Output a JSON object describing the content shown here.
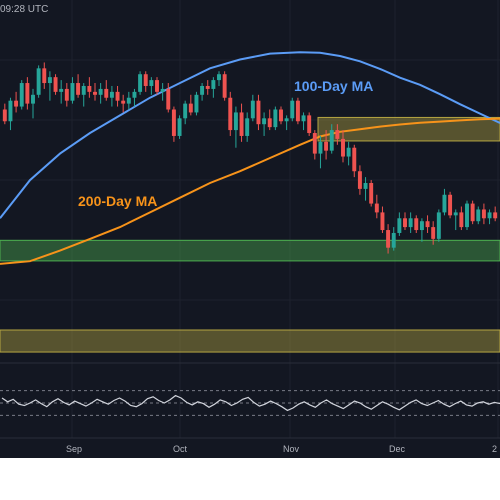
{
  "header": {
    "timestamp": "09:28 UTC"
  },
  "colors": {
    "background": "#131722",
    "bullish": "#26a69a",
    "bearish": "#ef5350",
    "ma100": "#5b9cf6",
    "ma200": "#f7931a",
    "rsi_line": "#d1d4dc",
    "supply_zone": "#b5a642",
    "demand_zone": "#4caf50"
  },
  "chart_data": [
    {
      "type": "candlestick",
      "title": "",
      "x_ticks": [
        "Sep",
        "Oct",
        "Nov",
        "Dec",
        "2"
      ],
      "price_range": [
        0,
        100
      ],
      "annotations": [
        "100-Day MA",
        "200-Day MA"
      ],
      "moving_averages": [
        {
          "name": "100-Day MA",
          "color": "#5b9cf6",
          "x": [
            0,
            30,
            60,
            90,
            120,
            150,
            180,
            210,
            240,
            270,
            300,
            320,
            340,
            360,
            380,
            400,
            420,
            440,
            460,
            480,
            500
          ],
          "y": [
            38,
            51,
            60,
            67,
            73,
            79,
            84,
            89,
            92,
            94,
            94.5,
            94.3,
            93.2,
            91.4,
            88.8,
            85.8,
            83.4,
            80.2,
            76.8,
            73.6,
            70.4
          ]
        },
        {
          "name": "200-Day MA",
          "color": "#f7931a",
          "x": [
            0,
            30,
            60,
            90,
            120,
            150,
            180,
            210,
            240,
            270,
            300,
            320,
            340,
            360,
            380,
            400,
            420,
            440,
            460,
            480,
            500
          ],
          "y": [
            22.5,
            23.4,
            27,
            31,
            35,
            40,
            45,
            50,
            54,
            58.5,
            63,
            65.8,
            67.4,
            68.3,
            69.2,
            69.9,
            70.5,
            70.9,
            71.3,
            71.7,
            71.9
          ]
        }
      ],
      "zones": [
        {
          "type": "resistance",
          "from": 64.3,
          "to": 72.3,
          "x_start": 318
        },
        {
          "type": "support",
          "from": 23.5,
          "to": 30.5
        },
        {
          "type": "support",
          "from": -7.5,
          "to": 0
        }
      ],
      "candles": [
        {
          "o": 75,
          "h": 77,
          "l": 70,
          "c": 71
        },
        {
          "o": 71,
          "h": 79,
          "l": 68,
          "c": 78
        },
        {
          "o": 78,
          "h": 81,
          "l": 74,
          "c": 76
        },
        {
          "o": 76,
          "h": 85,
          "l": 75,
          "c": 84
        },
        {
          "o": 84,
          "h": 86,
          "l": 75,
          "c": 77
        },
        {
          "o": 77,
          "h": 82,
          "l": 72,
          "c": 80
        },
        {
          "o": 80,
          "h": 90,
          "l": 79,
          "c": 89
        },
        {
          "o": 89,
          "h": 91,
          "l": 82,
          "c": 84
        },
        {
          "o": 84,
          "h": 88,
          "l": 78,
          "c": 86
        },
        {
          "o": 86,
          "h": 87,
          "l": 80,
          "c": 81
        },
        {
          "o": 81,
          "h": 85,
          "l": 77,
          "c": 82
        },
        {
          "o": 82,
          "h": 84,
          "l": 76,
          "c": 78
        },
        {
          "o": 78,
          "h": 86,
          "l": 77,
          "c": 84
        },
        {
          "o": 84,
          "h": 87,
          "l": 79,
          "c": 80
        },
        {
          "o": 80,
          "h": 84,
          "l": 76,
          "c": 83
        },
        {
          "o": 83,
          "h": 86,
          "l": 79,
          "c": 81
        },
        {
          "o": 81,
          "h": 84,
          "l": 78,
          "c": 80
        },
        {
          "o": 80,
          "h": 84,
          "l": 77,
          "c": 82
        },
        {
          "o": 82,
          "h": 85,
          "l": 78,
          "c": 79
        },
        {
          "o": 79,
          "h": 83,
          "l": 76,
          "c": 81
        },
        {
          "o": 81,
          "h": 83,
          "l": 76,
          "c": 78
        },
        {
          "o": 78,
          "h": 80,
          "l": 74,
          "c": 77
        },
        {
          "o": 77,
          "h": 81,
          "l": 75,
          "c": 79
        },
        {
          "o": 79,
          "h": 82,
          "l": 76,
          "c": 81
        },
        {
          "o": 81,
          "h": 88,
          "l": 80,
          "c": 87
        },
        {
          "o": 87,
          "h": 88,
          "l": 81,
          "c": 83
        },
        {
          "o": 83,
          "h": 86,
          "l": 80,
          "c": 85
        },
        {
          "o": 85,
          "h": 86,
          "l": 80,
          "c": 81
        },
        {
          "o": 81,
          "h": 84,
          "l": 78,
          "c": 82
        },
        {
          "o": 82,
          "h": 84,
          "l": 74,
          "c": 75
        },
        {
          "o": 75,
          "h": 76,
          "l": 64,
          "c": 66
        },
        {
          "o": 66,
          "h": 73,
          "l": 65,
          "c": 72
        },
        {
          "o": 72,
          "h": 78,
          "l": 70,
          "c": 77
        },
        {
          "o": 77,
          "h": 80,
          "l": 73,
          "c": 74
        },
        {
          "o": 74,
          "h": 81,
          "l": 73,
          "c": 80
        },
        {
          "o": 80,
          "h": 84,
          "l": 78,
          "c": 83
        },
        {
          "o": 83,
          "h": 85,
          "l": 80,
          "c": 82
        },
        {
          "o": 82,
          "h": 86,
          "l": 79,
          "c": 85
        },
        {
          "o": 85,
          "h": 88,
          "l": 83,
          "c": 87
        },
        {
          "o": 87,
          "h": 88,
          "l": 78,
          "c": 79
        },
        {
          "o": 79,
          "h": 81,
          "l": 66,
          "c": 68
        },
        {
          "o": 68,
          "h": 76,
          "l": 62,
          "c": 74
        },
        {
          "o": 74,
          "h": 77,
          "l": 64,
          "c": 66
        },
        {
          "o": 66,
          "h": 74,
          "l": 64,
          "c": 72
        },
        {
          "o": 72,
          "h": 80,
          "l": 71,
          "c": 78
        },
        {
          "o": 78,
          "h": 80,
          "l": 68,
          "c": 70
        },
        {
          "o": 70,
          "h": 74,
          "l": 66,
          "c": 72
        },
        {
          "o": 72,
          "h": 75,
          "l": 68,
          "c": 69
        },
        {
          "o": 69,
          "h": 76,
          "l": 68,
          "c": 75
        },
        {
          "o": 75,
          "h": 76,
          "l": 70,
          "c": 71
        },
        {
          "o": 71,
          "h": 73,
          "l": 68,
          "c": 72
        },
        {
          "o": 72,
          "h": 79,
          "l": 71,
          "c": 78
        },
        {
          "o": 78,
          "h": 79,
          "l": 70,
          "c": 71
        },
        {
          "o": 71,
          "h": 74,
          "l": 68,
          "c": 73
        },
        {
          "o": 73,
          "h": 74,
          "l": 66,
          "c": 67
        },
        {
          "o": 67,
          "h": 68,
          "l": 58,
          "c": 60
        },
        {
          "o": 60,
          "h": 66,
          "l": 55,
          "c": 64
        },
        {
          "o": 64,
          "h": 68,
          "l": 58,
          "c": 61
        },
        {
          "o": 61,
          "h": 70,
          "l": 60,
          "c": 68
        },
        {
          "o": 68,
          "h": 70,
          "l": 63,
          "c": 65
        },
        {
          "o": 65,
          "h": 68,
          "l": 57,
          "c": 59
        },
        {
          "o": 59,
          "h": 64,
          "l": 56,
          "c": 62
        },
        {
          "o": 62,
          "h": 63,
          "l": 52,
          "c": 54
        },
        {
          "o": 54,
          "h": 56,
          "l": 46,
          "c": 48
        },
        {
          "o": 48,
          "h": 52,
          "l": 44,
          "c": 50
        },
        {
          "o": 50,
          "h": 51,
          "l": 42,
          "c": 43
        },
        {
          "o": 43,
          "h": 46,
          "l": 38,
          "c": 40
        },
        {
          "o": 40,
          "h": 42,
          "l": 33,
          "c": 34
        },
        {
          "o": 34,
          "h": 36,
          "l": 26,
          "c": 28
        },
        {
          "o": 28,
          "h": 35,
          "l": 27,
          "c": 33
        },
        {
          "o": 33,
          "h": 40,
          "l": 32,
          "c": 38
        },
        {
          "o": 38,
          "h": 40,
          "l": 34,
          "c": 35
        },
        {
          "o": 35,
          "h": 40,
          "l": 33,
          "c": 38
        },
        {
          "o": 38,
          "h": 39,
          "l": 33,
          "c": 34
        },
        {
          "o": 34,
          "h": 38,
          "l": 30,
          "c": 37
        },
        {
          "o": 37,
          "h": 39,
          "l": 33,
          "c": 35
        },
        {
          "o": 35,
          "h": 37,
          "l": 29,
          "c": 31
        },
        {
          "o": 31,
          "h": 41,
          "l": 30,
          "c": 40
        },
        {
          "o": 40,
          "h": 48,
          "l": 39,
          "c": 46
        },
        {
          "o": 46,
          "h": 47,
          "l": 38,
          "c": 39
        },
        {
          "o": 39,
          "h": 41,
          "l": 34,
          "c": 40
        },
        {
          "o": 40,
          "h": 42,
          "l": 34,
          "c": 35
        },
        {
          "o": 35,
          "h": 44,
          "l": 34,
          "c": 43
        },
        {
          "o": 43,
          "h": 44,
          "l": 36,
          "c": 37
        },
        {
          "o": 37,
          "h": 42,
          "l": 36,
          "c": 41
        },
        {
          "o": 41,
          "h": 43,
          "l": 36,
          "c": 38
        },
        {
          "o": 38,
          "h": 41,
          "l": 36,
          "c": 40
        },
        {
          "o": 40,
          "h": 42,
          "l": 37,
          "c": 38
        }
      ]
    },
    {
      "type": "line",
      "title": "",
      "ylim": [
        0,
        100
      ],
      "reference_lines": [
        70,
        50,
        30
      ],
      "series": [
        {
          "values": [
            58,
            52,
            56,
            48,
            46,
            50,
            55,
            49,
            44,
            52,
            57,
            51,
            47,
            53,
            49,
            45,
            50,
            56,
            52,
            48,
            54,
            58,
            53,
            46,
            44,
            49,
            57,
            60,
            54,
            50,
            55,
            62,
            58,
            51,
            47,
            52,
            49,
            43,
            48,
            55,
            52,
            46,
            50,
            56,
            59,
            51,
            45,
            48,
            53,
            49,
            44,
            38,
            42,
            48,
            52,
            47,
            43,
            50,
            55,
            49,
            45,
            41,
            47,
            53,
            50,
            44,
            40,
            46,
            52,
            48,
            43,
            39,
            45,
            51,
            55,
            49,
            46,
            50,
            54,
            48,
            44,
            49,
            53,
            47,
            45,
            50,
            52,
            48,
            51,
            49
          ]
        }
      ]
    }
  ]
}
